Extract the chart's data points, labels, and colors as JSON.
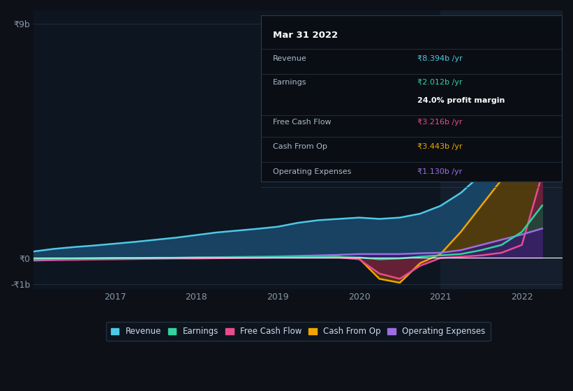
{
  "bg_color": "#0d1117",
  "chart_bg": "#0d1520",
  "highlight_bg": "#1a2535",
  "grid_color": "#2a3a4a",
  "zero_line_color": "#ffffff",
  "y_label_color": "#8899aa",
  "x_label_color": "#8899aa",
  "ylim": [
    -1.2,
    9.5
  ],
  "xlim": [
    2016.0,
    2022.5
  ],
  "yticks": [
    -1,
    0,
    9
  ],
  "ytick_labels": [
    "-₹1b",
    "₹0",
    "₹9b"
  ],
  "xtick_labels": [
    "2017",
    "2018",
    "2019",
    "2020",
    "2021",
    "2022"
  ],
  "xtick_positions": [
    2017,
    2018,
    2019,
    2020,
    2021,
    2022
  ],
  "highlight_start": 2021.0,
  "highlight_end": 2022.5,
  "tooltip": {
    "title": "Mar 31 2022",
    "rows": [
      {
        "label": "Revenue",
        "value": "₹8.394b /yr",
        "value_color": "#4dc9e6"
      },
      {
        "label": "Earnings",
        "value": "₹2.012b /yr",
        "value_color": "#2fd4a0"
      },
      {
        "label": "",
        "value": "24.0% profit margin",
        "value_color": "#ffffff",
        "bold": true
      },
      {
        "label": "Free Cash Flow",
        "value": "₹3.216b /yr",
        "value_color": "#e84c8e"
      },
      {
        "label": "Cash From Op",
        "value": "₹3.443b /yr",
        "value_color": "#f0a500"
      },
      {
        "label": "Operating Expenses",
        "value": "₹1.130b /yr",
        "value_color": "#9b6fe0"
      }
    ],
    "bg_color": "#0a0e14",
    "border_color": "#2a3a4a",
    "text_color": "#aabbcc",
    "title_color": "#ffffff",
    "sep_after_rows": [
      0,
      2,
      3,
      4,
      5
    ]
  },
  "series": {
    "revenue": {
      "color": "#4dc9e6",
      "fill_color": "#1a4a6e",
      "label": "Revenue",
      "x": [
        2016.0,
        2016.25,
        2016.5,
        2016.75,
        2017.0,
        2017.25,
        2017.5,
        2017.75,
        2018.0,
        2018.25,
        2018.5,
        2018.75,
        2019.0,
        2019.25,
        2019.5,
        2019.75,
        2020.0,
        2020.25,
        2020.5,
        2020.75,
        2021.0,
        2021.25,
        2021.5,
        2021.75,
        2022.0,
        2022.25
      ],
      "y": [
        0.25,
        0.35,
        0.42,
        0.48,
        0.55,
        0.62,
        0.7,
        0.78,
        0.88,
        0.98,
        1.05,
        1.12,
        1.2,
        1.35,
        1.45,
        1.5,
        1.55,
        1.5,
        1.55,
        1.7,
        2.0,
        2.5,
        3.2,
        4.2,
        6.0,
        8.394
      ]
    },
    "earnings": {
      "color": "#2fd4a0",
      "fill_color": "#1a4a3a",
      "label": "Earnings",
      "x": [
        2016.0,
        2016.25,
        2016.5,
        2016.75,
        2017.0,
        2017.25,
        2017.5,
        2017.75,
        2018.0,
        2018.25,
        2018.5,
        2018.75,
        2019.0,
        2019.25,
        2019.5,
        2019.75,
        2020.0,
        2020.25,
        2020.5,
        2020.75,
        2021.0,
        2021.25,
        2021.5,
        2021.75,
        2022.0,
        2022.25
      ],
      "y": [
        -0.05,
        -0.03,
        -0.02,
        -0.01,
        0.0,
        0.0,
        0.01,
        0.01,
        0.02,
        0.02,
        0.03,
        0.03,
        0.04,
        0.04,
        0.04,
        0.03,
        0.02,
        -0.05,
        -0.02,
        0.05,
        0.1,
        0.15,
        0.3,
        0.5,
        1.0,
        2.012
      ]
    },
    "free_cash_flow": {
      "color": "#e84c8e",
      "fill_color": "#6e1a4a",
      "label": "Free Cash Flow",
      "x": [
        2016.0,
        2016.25,
        2016.5,
        2016.75,
        2017.0,
        2017.25,
        2017.5,
        2017.75,
        2018.0,
        2018.25,
        2018.5,
        2018.75,
        2019.0,
        2019.25,
        2019.5,
        2019.75,
        2020.0,
        2020.25,
        2020.5,
        2020.75,
        2021.0,
        2021.25,
        2021.5,
        2021.75,
        2022.0,
        2022.25
      ],
      "y": [
        -0.1,
        -0.08,
        -0.07,
        -0.06,
        -0.05,
        -0.04,
        -0.03,
        -0.02,
        -0.02,
        -0.01,
        0.0,
        0.01,
        0.02,
        0.05,
        0.08,
        0.02,
        -0.05,
        -0.6,
        -0.8,
        -0.3,
        0.0,
        0.05,
        0.1,
        0.2,
        0.5,
        3.216
      ]
    },
    "cash_from_op": {
      "color": "#f0a500",
      "fill_color": "#5a3a00",
      "label": "Cash From Op",
      "x": [
        2016.0,
        2016.25,
        2016.5,
        2016.75,
        2017.0,
        2017.25,
        2017.5,
        2017.75,
        2018.0,
        2018.25,
        2018.5,
        2018.75,
        2019.0,
        2019.25,
        2019.5,
        2019.75,
        2020.0,
        2020.25,
        2020.5,
        2020.75,
        2021.0,
        2021.25,
        2021.5,
        2021.75,
        2022.0,
        2022.25
      ],
      "y": [
        -0.08,
        -0.06,
        -0.05,
        -0.04,
        -0.03,
        -0.02,
        -0.01,
        0.0,
        0.01,
        0.01,
        0.02,
        0.02,
        0.04,
        0.06,
        0.08,
        0.05,
        -0.02,
        -0.8,
        -0.95,
        -0.2,
        0.15,
        1.0,
        2.0,
        3.0,
        3.2,
        3.443
      ]
    },
    "operating_expenses": {
      "color": "#9b6fe0",
      "fill_color": "#3a1a6e",
      "label": "Operating Expenses",
      "x": [
        2016.0,
        2016.25,
        2016.5,
        2016.75,
        2017.0,
        2017.25,
        2017.5,
        2017.75,
        2018.0,
        2018.25,
        2018.5,
        2018.75,
        2019.0,
        2019.25,
        2019.5,
        2019.75,
        2020.0,
        2020.25,
        2020.5,
        2020.75,
        2021.0,
        2021.25,
        2021.5,
        2021.75,
        2022.0,
        2022.25
      ],
      "y": [
        -0.06,
        -0.05,
        -0.04,
        -0.03,
        -0.02,
        -0.01,
        0.0,
        0.01,
        0.02,
        0.03,
        0.04,
        0.05,
        0.06,
        0.08,
        0.1,
        0.12,
        0.15,
        0.15,
        0.15,
        0.18,
        0.2,
        0.3,
        0.5,
        0.7,
        0.9,
        1.13
      ]
    }
  },
  "legend": [
    {
      "label": "Revenue",
      "color": "#4dc9e6"
    },
    {
      "label": "Earnings",
      "color": "#2fd4a0"
    },
    {
      "label": "Free Cash Flow",
      "color": "#e84c8e"
    },
    {
      "label": "Cash From Op",
      "color": "#f0a500"
    },
    {
      "label": "Operating Expenses",
      "color": "#9b6fe0"
    }
  ]
}
